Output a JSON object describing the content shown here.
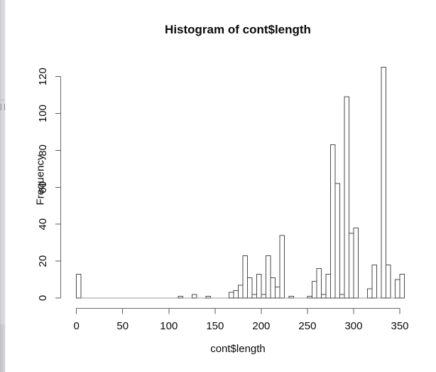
{
  "window": {
    "left_scrollbar": {
      "present": true,
      "grip_icon": "splitter-grip"
    }
  },
  "chart_data": {
    "type": "bar",
    "chart_kind": "histogram",
    "title": "Histogram of cont$length",
    "xlabel": "cont$length",
    "ylabel": "Frequency",
    "bin_start": 0,
    "bin_width": 5,
    "values": [
      13,
      0,
      0,
      0,
      0,
      0,
      0,
      0,
      0,
      0,
      0,
      0,
      0,
      0,
      0,
      0,
      0,
      0,
      0,
      0,
      0,
      0,
      1,
      0,
      0,
      2,
      0,
      0,
      1,
      0,
      0,
      0,
      0,
      3,
      4,
      7,
      23,
      11,
      2,
      13,
      2,
      23,
      11,
      6,
      34,
      0,
      1,
      0,
      0,
      0,
      1,
      9,
      16,
      2,
      13,
      83,
      62,
      2,
      109,
      35,
      38,
      0,
      0,
      5,
      18,
      0,
      125,
      18,
      0,
      10,
      13
    ],
    "x_ticks": [
      0,
      50,
      100,
      150,
      200,
      250,
      300,
      350
    ],
    "y_ticks": [
      0,
      20,
      40,
      60,
      80,
      100,
      120
    ],
    "xlim": [
      0,
      355
    ],
    "ylim": [
      0,
      125
    ],
    "grid": false,
    "legend_position": "none"
  },
  "colors": {
    "background": "#ffffff",
    "bar_fill": "#ffffff",
    "bar_stroke": "#4a4a4a",
    "zero_baseline": "#9c9c9c",
    "axis_line": "#6a6a6a",
    "tick_mark": "#5a5a5a",
    "text": "#0a0a0a",
    "scrollbar_track": "#d6d6da",
    "scrollbar_lower": "#cbcbcf",
    "grip": "#8f8f97"
  }
}
